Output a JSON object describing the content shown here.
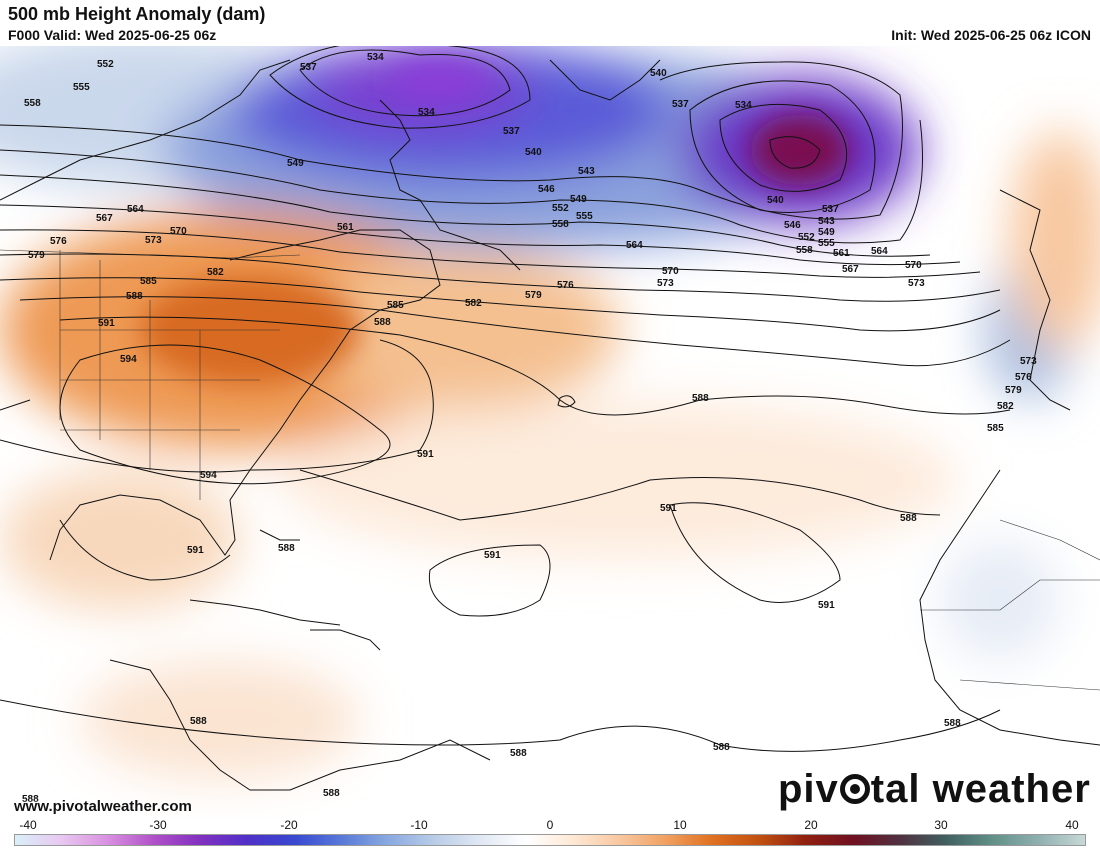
{
  "header": {
    "title": "500 mb Height Anomaly (dam)",
    "valid": "F000 Valid: Wed 2025-06-25 06z",
    "init": "Init: Wed 2025-06-25 06z ICON"
  },
  "footer": {
    "website": "www.pivotalweather.com",
    "brand_left": "piv",
    "brand_icon": "gear-icon",
    "brand_right": "tal weather"
  },
  "colorbar": {
    "ticks": [
      "-40",
      "-30",
      "-20",
      "-10",
      "0",
      "10",
      "20",
      "30",
      "40"
    ],
    "colors": [
      "#d8f0f8",
      "#e8c8f0",
      "#d890e0",
      "#b050c8",
      "#8030c0",
      "#5030c8",
      "#3848d0",
      "#5878d8",
      "#88a8e0",
      "#b8cce8",
      "#e0e8f4",
      "#ffffff",
      "#fde8d4",
      "#f8c8a0",
      "#f0a060",
      "#e07020",
      "#c05010",
      "#902010",
      "#701020",
      "#503040",
      "#406060",
      "#609088",
      "#90b0b0",
      "#c8d8d8"
    ]
  },
  "contour_labels": [
    "537",
    "534",
    "552",
    "555",
    "558",
    "540",
    "534",
    "537",
    "534",
    "537",
    "549",
    "540",
    "543",
    "546",
    "549",
    "552",
    "555",
    "558",
    "540",
    "537",
    "543",
    "546",
    "549",
    "552",
    "555",
    "558",
    "561",
    "564",
    "567",
    "570",
    "573",
    "564",
    "570",
    "573",
    "576",
    "579",
    "582",
    "585",
    "588",
    "591",
    "594",
    "561",
    "564",
    "567",
    "570",
    "573",
    "576",
    "579",
    "582",
    "585",
    "588",
    "591",
    "594",
    "591",
    "588",
    "591",
    "591",
    "588",
    "582",
    "576",
    "573",
    "579",
    "585",
    "588",
    "591",
    "588",
    "588",
    "588",
    "588",
    "588",
    "588"
  ]
}
